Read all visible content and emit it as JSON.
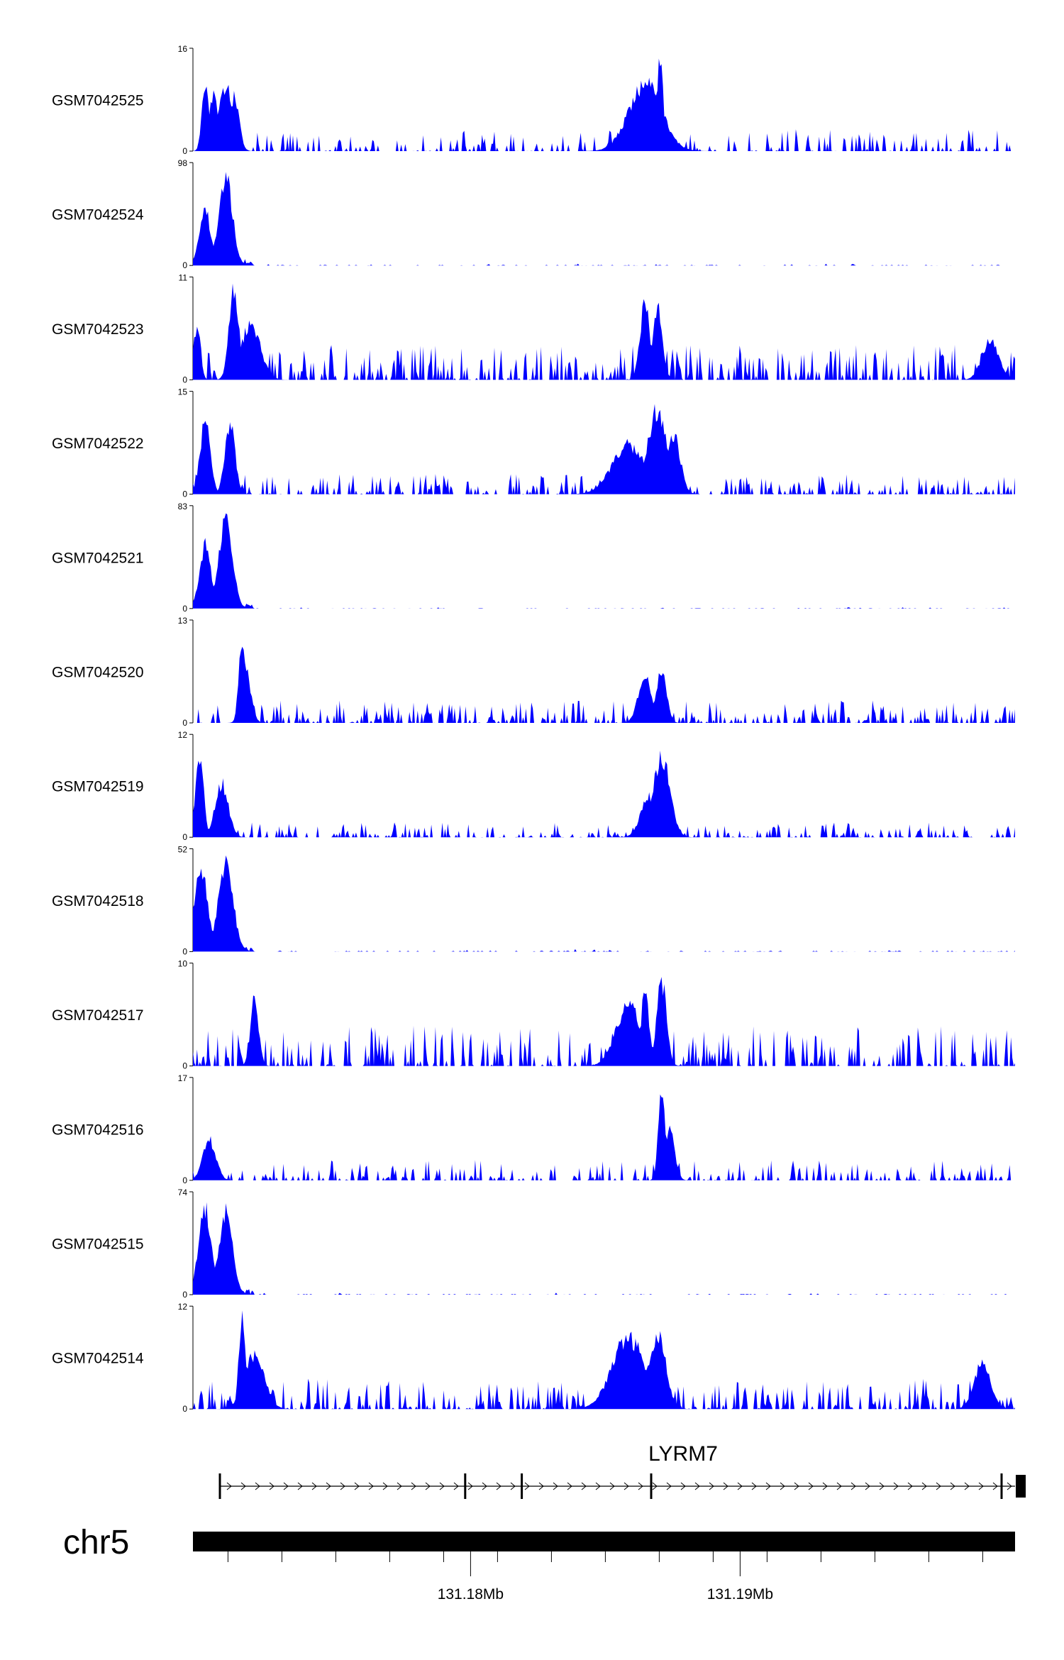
{
  "chart_data": {
    "type": "area",
    "title": "",
    "color": "#0000ff",
    "tracks": [
      {
        "name": "GSM7042525",
        "ymax": 16,
        "ymin": 0
      },
      {
        "name": "GSM7042524",
        "ymax": 98,
        "ymin": 0
      },
      {
        "name": "GSM7042523",
        "ymax": 11,
        "ymin": 0
      },
      {
        "name": "GSM7042522",
        "ymax": 15,
        "ymin": 0
      },
      {
        "name": "GSM7042521",
        "ymax": 83,
        "ymin": 0
      },
      {
        "name": "GSM7042520",
        "ymax": 13,
        "ymin": 0
      },
      {
        "name": "GSM7042519",
        "ymax": 12,
        "ymin": 0
      },
      {
        "name": "GSM7042518",
        "ymax": 52,
        "ymin": 0
      },
      {
        "name": "GSM7042517",
        "ymax": 10,
        "ymin": 0
      },
      {
        "name": "GSM7042516",
        "ymax": 17,
        "ymin": 0
      },
      {
        "name": "GSM7042515",
        "ymax": 74,
        "ymin": 0
      },
      {
        "name": "GSM7042514",
        "ymax": 12,
        "ymin": 0
      }
    ],
    "gene": {
      "name": "LYRM7",
      "strand": "+",
      "start_mb": 131.1707,
      "end_mb": 131.2002,
      "exons_mb": [
        131.1707,
        131.1798,
        131.1819,
        131.1867,
        131.1997
      ]
    },
    "chromosome": "chr5",
    "region_mb": [
      131.1697,
      131.2002
    ],
    "x_ticks_mb": [
      131.171,
      131.173,
      131.175,
      131.177,
      131.179,
      131.181,
      131.183,
      131.185,
      131.187,
      131.189,
      131.191,
      131.193,
      131.195,
      131.197,
      131.199
    ],
    "x_major_labels": [
      {
        "position_mb": 131.18,
        "label": "131.18Mb"
      },
      {
        "position_mb": 131.19,
        "label": "131.19Mb"
      }
    ]
  }
}
